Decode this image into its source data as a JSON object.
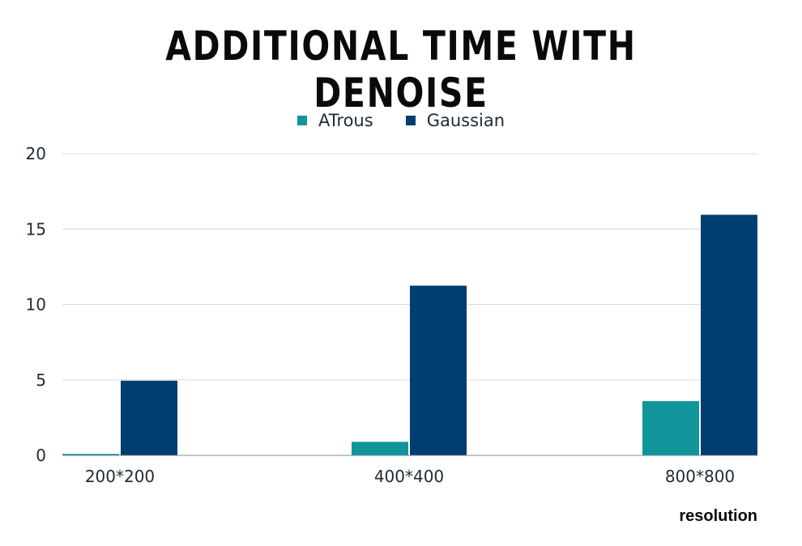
{
  "chart_data": {
    "type": "bar",
    "title": "ADDITIONAL TIME WITH DENOISE",
    "xlabel": "resolution",
    "ylabel": "",
    "categories": [
      "200*200",
      "400*400",
      "800*800"
    ],
    "series": [
      {
        "name": "ATrous",
        "values": [
          0.1,
          0.9,
          3.6
        ],
        "color": "#0f959a"
      },
      {
        "name": "Gaussian",
        "values": [
          4.95,
          11.25,
          15.95
        ],
        "color": "#003d70"
      }
    ],
    "ylim": [
      0,
      20
    ],
    "yticks": [
      "0",
      "5",
      "10",
      "15",
      "20"
    ],
    "grid": true,
    "legend_position": "top-center"
  }
}
